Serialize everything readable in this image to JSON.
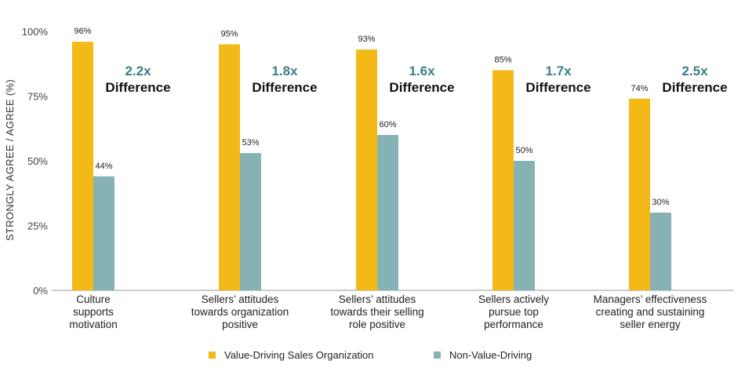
{
  "chart_data": {
    "type": "bar",
    "ylabel": "STRONGLY AGREE / AGREE (%)",
    "ylim": [
      0,
      100
    ],
    "yticks": [
      "0%",
      "25%",
      "50%",
      "75%",
      "100%"
    ],
    "grid": false,
    "legend_position": "bottom",
    "categories": [
      [
        "Culture",
        "supports",
        "motivation"
      ],
      [
        "Sellers’ attitudes",
        "towards organization",
        "positive"
      ],
      [
        "Sellers’ attitudes",
        "towards their selling",
        "role positive"
      ],
      [
        "Sellers actively",
        "pursue top",
        "performance"
      ],
      [
        "Managers’ effectiveness",
        "creating and sustaining",
        "seller energy"
      ]
    ],
    "series": [
      {
        "name": "Value-Driving Sales Organization",
        "color": "#f3b917",
        "values": [
          96,
          95,
          93,
          85,
          74
        ],
        "labels": [
          "96%",
          "95%",
          "93%",
          "85%",
          "74%"
        ]
      },
      {
        "name": "Non-Value-Driving",
        "color": "#86b2b6",
        "values": [
          44,
          53,
          60,
          50,
          30
        ],
        "labels": [
          "44%",
          "53%",
          "60%",
          "50%",
          "30%"
        ]
      }
    ],
    "annotations": [
      {
        "multiplier": "2.2x",
        "text": "Difference"
      },
      {
        "multiplier": "1.8x",
        "text": "Difference"
      },
      {
        "multiplier": "1.6x",
        "text": "Difference"
      },
      {
        "multiplier": "1.7x",
        "text": "Difference"
      },
      {
        "multiplier": "2.5x",
        "text": "Difference"
      }
    ]
  }
}
